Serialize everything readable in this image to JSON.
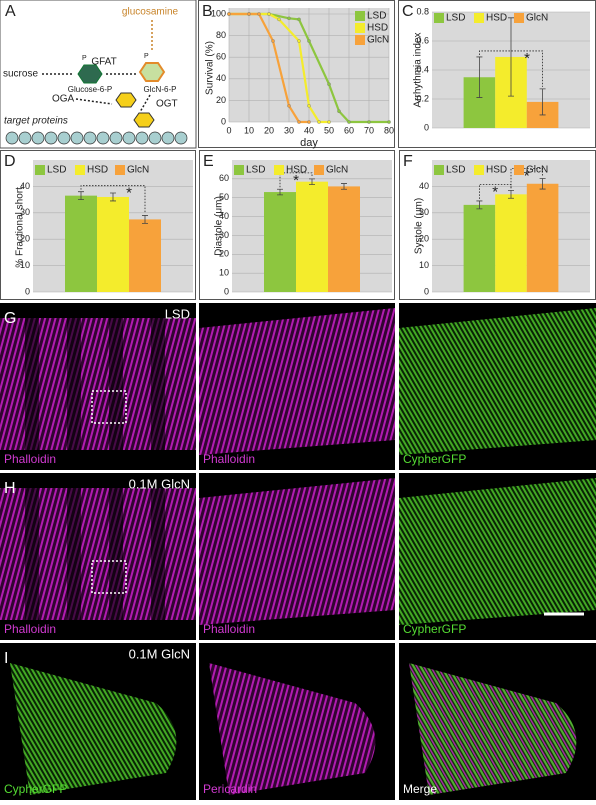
{
  "panel_labels": [
    "A",
    "B",
    "C",
    "D",
    "E",
    "F",
    "G",
    "H",
    "I"
  ],
  "diagram": {
    "sucrose": "sucrose",
    "gfat": "GFAT",
    "glucose_6_p": "Glucose-6-P",
    "glcn_6_p": "GlcN-6-P",
    "glucosamine": "glucosamine",
    "ogt": "OGT",
    "oga": "OGA",
    "target_proteins": "target proteins",
    "phospho": [
      "P",
      "P"
    ]
  },
  "chart_data": [
    {
      "type": "line",
      "ylabel": "Survival (%)",
      "xlabel": "day",
      "xlim": [
        0,
        80
      ],
      "xticks": [
        0,
        10,
        20,
        30,
        40,
        50,
        60,
        70,
        80
      ],
      "ylim": [
        0,
        100
      ],
      "yticks": [
        0,
        20,
        40,
        60,
        80,
        100
      ],
      "grid": true,
      "legend": "upper right",
      "series": [
        {
          "name": "LSD",
          "color": "#8dc63f",
          "x": [
            0,
            10,
            20,
            30,
            35,
            40,
            50,
            55,
            60,
            70,
            80
          ],
          "values": [
            100,
            100,
            100,
            96,
            95,
            75,
            35,
            10,
            0,
            0,
            0
          ]
        },
        {
          "name": "HSD",
          "color": "#f4ec2c",
          "x": [
            0,
            10,
            20,
            25,
            35,
            40,
            45,
            50
          ],
          "values": [
            100,
            100,
            100,
            95,
            75,
            15,
            0,
            0
          ]
        },
        {
          "name": "GlcN",
          "color": "#f7a23b",
          "x": [
            0,
            10,
            15,
            22,
            30,
            35,
            40
          ],
          "values": [
            100,
            100,
            100,
            75,
            15,
            0,
            0
          ]
        }
      ]
    },
    {
      "type": "bar",
      "ylabel": "Arrhythmia index",
      "ylim": [
        0,
        0.8
      ],
      "yticks": [
        0,
        0.2,
        0.4,
        0.6,
        0.8
      ],
      "grid": true,
      "legend": "top",
      "annotations": [
        "*"
      ],
      "series": [
        {
          "name": "LSD",
          "color": "#8dc63f",
          "values": [
            0.35
          ],
          "errors": [
            0.14
          ]
        },
        {
          "name": "HSD",
          "color": "#f4ec2c",
          "values": [
            0.49
          ],
          "errors": [
            0.27
          ]
        },
        {
          "name": "GlcN",
          "color": "#f7a23b",
          "values": [
            0.18
          ],
          "errors": [
            0.09
          ]
        }
      ]
    },
    {
      "type": "bar",
      "ylabel": "% Fractional short.",
      "ylim": [
        0,
        50
      ],
      "yticks": [
        0,
        10,
        20,
        30,
        40
      ],
      "grid": true,
      "legend": "top",
      "annotations": [
        "*"
      ],
      "series": [
        {
          "name": "LSD",
          "color": "#8dc63f",
          "values": [
            36.5
          ],
          "errors": [
            1.5
          ]
        },
        {
          "name": "HSD",
          "color": "#f4ec2c",
          "values": [
            36
          ],
          "errors": [
            1.5
          ]
        },
        {
          "name": "GlcN",
          "color": "#f7a23b",
          "values": [
            27.5
          ],
          "errors": [
            1.5
          ]
        }
      ]
    },
    {
      "type": "bar",
      "ylabel": "Diastole (μm)",
      "ylim": [
        0,
        70
      ],
      "yticks": [
        0,
        10,
        20,
        30,
        40,
        50,
        60
      ],
      "grid": true,
      "legend": "top",
      "annotations": [
        "*"
      ],
      "series": [
        {
          "name": "LSD",
          "color": "#8dc63f",
          "values": [
            53
          ],
          "errors": [
            1.5
          ]
        },
        {
          "name": "HSD",
          "color": "#f4ec2c",
          "values": [
            58.5
          ],
          "errors": [
            1.5
          ]
        },
        {
          "name": "GlcN",
          "color": "#f7a23b",
          "values": [
            56
          ],
          "errors": [
            1.5
          ]
        }
      ]
    },
    {
      "type": "bar",
      "ylabel": "Systole (μm)",
      "ylim": [
        0,
        50
      ],
      "yticks": [
        0,
        10,
        20,
        30,
        40
      ],
      "grid": true,
      "legend": "top",
      "annotations": [
        "*",
        "*"
      ],
      "series": [
        {
          "name": "LSD",
          "color": "#8dc63f",
          "values": [
            33
          ],
          "errors": [
            1.5
          ]
        },
        {
          "name": "HSD",
          "color": "#f4ec2c",
          "values": [
            37
          ],
          "errors": [
            1.5
          ]
        },
        {
          "name": "GlcN",
          "color": "#f7a23b",
          "values": [
            41
          ],
          "errors": [
            2
          ]
        }
      ]
    }
  ],
  "images": {
    "rows": [
      {
        "label": "LSD",
        "captions": [
          "Phalloidin",
          "Phalloidin",
          "CypherGFP"
        ]
      },
      {
        "label": "0.1M GlcN",
        "captions": [
          "Phalloidin",
          "Phalloidin",
          "CypherGFP"
        ]
      },
      {
        "label": "0.1M GlcN",
        "captions": [
          "CypherGFP",
          "Pericardin",
          "Merge"
        ]
      }
    ]
  }
}
